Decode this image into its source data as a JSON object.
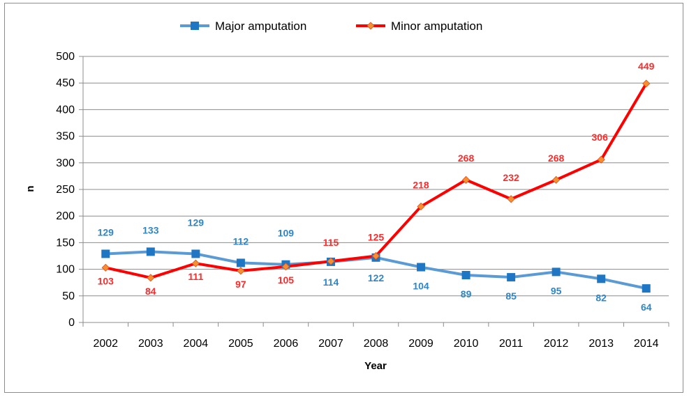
{
  "chart_data": {
    "type": "line",
    "title": "",
    "xlabel": "Year",
    "ylabel": "n",
    "ylim": [
      0,
      500
    ],
    "yticks": [
      "0",
      "50",
      "100",
      "150",
      "200",
      "250",
      "300",
      "350",
      "400",
      "450",
      "500"
    ],
    "categories": [
      "2002",
      "2003",
      "2004",
      "2005",
      "2006",
      "2007",
      "2008",
      "2009",
      "2010",
      "2011",
      "2012",
      "2013",
      "2014"
    ],
    "grid": true,
    "legend_position": "top",
    "series": [
      {
        "name": "Major amputation",
        "color": "#5b9bd5",
        "marker_color": "#1f77c4",
        "label_color": "#2e86c8",
        "marker": "square",
        "values": [
          129,
          133,
          129,
          112,
          109,
          114,
          122,
          104,
          89,
          85,
          95,
          82,
          64
        ]
      },
      {
        "name": "Minor amputation",
        "color": "#ff0000",
        "marker_color": "#f4902f",
        "label_color": "#ff2a2a",
        "marker": "diamond",
        "values": [
          103,
          84,
          111,
          97,
          105,
          115,
          125,
          218,
          268,
          232,
          268,
          306,
          449
        ]
      }
    ]
  }
}
